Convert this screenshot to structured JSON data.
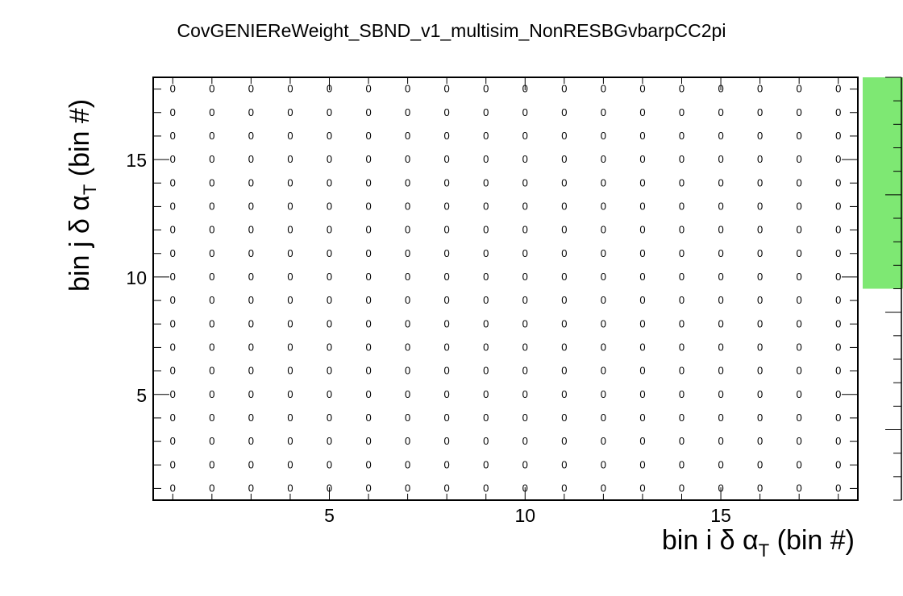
{
  "chart_data": {
    "type": "heatmap",
    "title": "CovGENIEReWeight_SBND_v1_multisim_NonRESBGvbarpCC2pi",
    "xlabel": {
      "main": "bin i δ α",
      "sub": "T",
      "tail": " (bin #)"
    },
    "ylabel": {
      "main": "bin j δ α",
      "sub": "T",
      "tail": " (bin #)"
    },
    "xlim": [
      0.5,
      18.5
    ],
    "ylim": [
      0.5,
      18.5
    ],
    "x_ticks": [
      "5",
      "10",
      "15"
    ],
    "y_ticks": [
      "5",
      "10",
      "15"
    ],
    "n_bins_x": 18,
    "n_bins_y": 18,
    "cell_value": "0",
    "palette_color": "#7ee873",
    "palette_filled_fraction": 0.5,
    "grid": false,
    "legend": "none"
  }
}
